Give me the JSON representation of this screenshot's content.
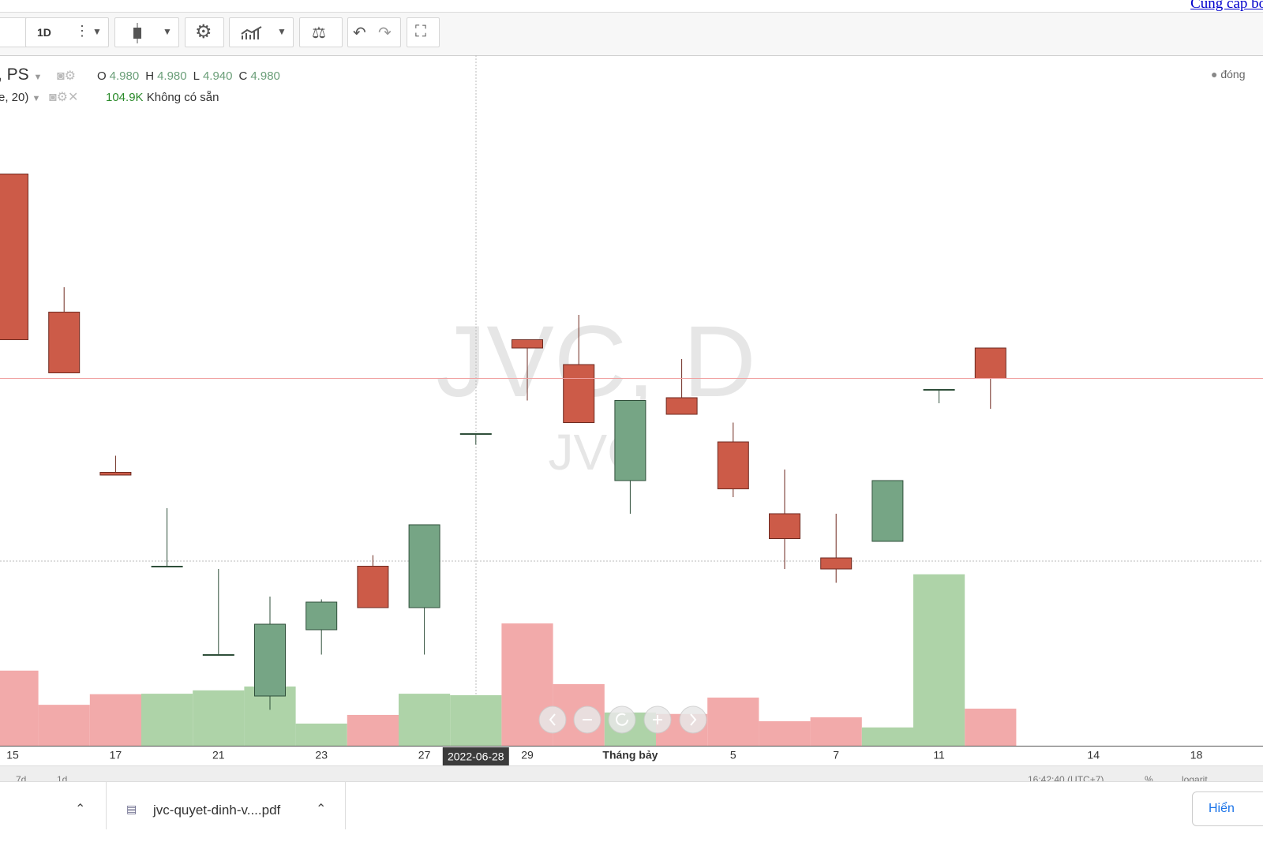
{
  "toolbar": {
    "interval": "1D"
  },
  "attribution": "Cung cấp bởi",
  "status_label": "đóng",
  "ohlc_legend": {
    "symbol": ", PS",
    "items": [
      {
        "key": "O",
        "value": "4.980"
      },
      {
        "key": "H",
        "value": "4.980"
      },
      {
        "key": "L",
        "value": "4.940"
      },
      {
        "key": "C",
        "value": "4.980"
      }
    ]
  },
  "volume_legend": {
    "study": "e, 20)",
    "value": "104.9K",
    "status": "Không có sẵn"
  },
  "bottom_bar": {
    "ranges": [
      "7d",
      "1d"
    ],
    "clock": "16:42:40 (UTC+7)",
    "percent": "%",
    "log": "logarit"
  },
  "downloads": {
    "file": "jvc-quyet-dinh-v....pdf",
    "show_all": "Hiển"
  },
  "chart_data": {
    "type": "candlestick",
    "title": "JVC, D",
    "subtitle": "JVC",
    "categories": [
      "15",
      null,
      "17",
      null,
      "21",
      null,
      "23",
      null,
      "27",
      "2022-06-28",
      "29",
      null,
      "Tháng bảy",
      null,
      "5",
      null,
      "7",
      null,
      "11",
      null,
      null,
      "14",
      null,
      "18"
    ],
    "open": [
      5.92,
      5.42,
      4.84,
      4.5,
      4.18,
      4.03,
      4.27,
      4.5,
      4.35,
      4.98,
      5.32,
      5.23,
      4.81,
      5.11,
      4.95,
      4.69,
      4.53,
      4.59,
      5.14,
      5.29,
      null,
      null,
      null,
      null
    ],
    "high": [
      5.92,
      5.51,
      4.9,
      4.71,
      4.49,
      4.39,
      4.38,
      4.54,
      4.65,
      4.98,
      5.32,
      5.41,
      5.1,
      5.25,
      5.02,
      4.85,
      4.69,
      4.81,
      5.14,
      5.29,
      null,
      null,
      null,
      null
    ],
    "low": [
      5.32,
      5.2,
      4.83,
      4.5,
      4.18,
      3.98,
      4.18,
      4.35,
      4.18,
      4.94,
      5.1,
      5.02,
      4.69,
      5.05,
      4.75,
      4.49,
      4.44,
      4.59,
      5.09,
      5.07,
      null,
      null,
      null,
      null
    ],
    "close": [
      5.32,
      5.2,
      4.83,
      4.5,
      4.18,
      4.29,
      4.37,
      4.35,
      4.65,
      4.98,
      5.29,
      5.02,
      5.1,
      5.05,
      4.78,
      4.6,
      4.49,
      4.81,
      5.14,
      5.18,
      null,
      null,
      null,
      null
    ],
    "volume": [
      156000,
      85000,
      107000,
      108000,
      115000,
      123000,
      46000,
      64000,
      108000,
      104900,
      254000,
      128000,
      69000,
      66000,
      100000,
      51000,
      59000,
      38000,
      356000,
      77000,
      null,
      null,
      null,
      null
    ],
    "ylim": [
      3.85,
      6.35
    ],
    "y2lim": [
      0,
      1434000
    ],
    "up_color": "#76a585",
    "down_color": "#cc5b48",
    "up_volume_color": "#aed3a8",
    "down_volume_color": "#f2aaaa",
    "last_price_line": true
  }
}
